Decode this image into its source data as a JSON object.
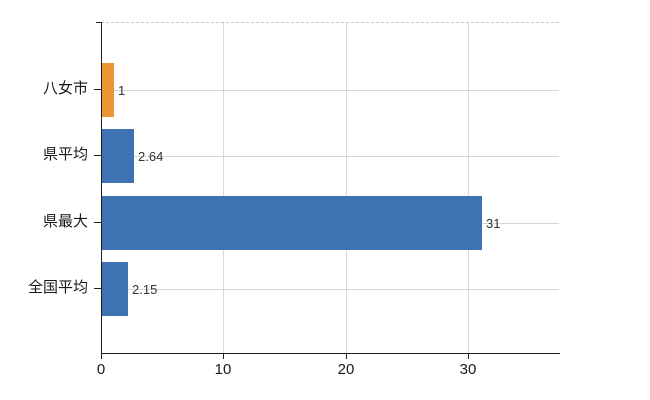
{
  "chart_data": {
    "type": "bar",
    "orientation": "horizontal",
    "title": "",
    "xlabel": "",
    "ylabel": "",
    "categories": [
      "八女市",
      "県平均",
      "県最大",
      "全国平均"
    ],
    "values": [
      1,
      2.64,
      31,
      2.15
    ],
    "value_labels": [
      "1",
      "2.64",
      "31",
      "2.15"
    ],
    "bar_colors": [
      "#ED9533",
      "#3D73B3",
      "#3D73B3",
      "#3D73B3"
    ],
    "x_ticks": [
      0,
      10,
      20,
      30
    ],
    "x_tick_labels": [
      "0",
      "10",
      "20",
      "30"
    ],
    "xlim": [
      0,
      37.4
    ],
    "grid": true,
    "legend": false,
    "colors": {
      "axis": "#222222",
      "grid_vertical": "#d6d9d6",
      "grid_horizontal": "#d2d9d2",
      "plot_top_border": "#c9c9c9",
      "tick_text": "#1a1a1a",
      "value_text": "#333333",
      "background": "#ffffff",
      "orange_bar": "#ED9533",
      "blue_bar": "#3D73B3"
    }
  }
}
